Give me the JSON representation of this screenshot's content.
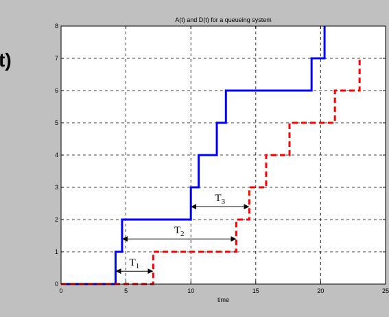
{
  "figure_background": "#c0c0c0",
  "side_label": "t)",
  "chart_data": {
    "type": "line",
    "title": "A(t) and D(t) for a queueing system",
    "xlabel": "time",
    "ylabel": "",
    "xlim": [
      0,
      25
    ],
    "ylim": [
      0,
      8
    ],
    "x_ticks": [
      "0",
      "5",
      "10",
      "15",
      "20",
      "25"
    ],
    "y_ticks": [
      "0",
      "1",
      "2",
      "3",
      "4",
      "5",
      "6",
      "7",
      "8"
    ],
    "grid": true,
    "series": [
      {
        "color": "#0000ff",
        "style": "solid",
        "step_times": [
          4.2,
          4.7,
          10.0,
          10.6,
          12.0,
          12.7,
          19.3,
          20.3
        ],
        "end_x": 20.3
      },
      {
        "color": "#ff0000",
        "style": "dashed",
        "step_times": [
          7.1,
          13.5,
          14.5,
          15.8,
          17.6,
          21.1,
          23.0
        ],
        "end_x": 23.0
      }
    ],
    "annotations": [
      {
        "label": "T",
        "subscript": "1",
        "y": 0.4,
        "x_start": 4.2,
        "x_end": 7.1
      },
      {
        "label": "T",
        "subscript": "2",
        "y": 1.4,
        "x_start": 4.7,
        "x_end": 13.5
      },
      {
        "label": "T",
        "subscript": "3",
        "y": 2.4,
        "x_start": 10.0,
        "x_end": 14.5
      }
    ]
  }
}
